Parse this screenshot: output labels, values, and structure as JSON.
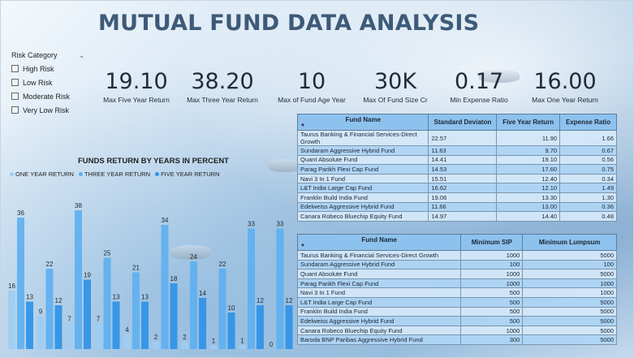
{
  "title": "MUTUAL FUND DATA ANALYSIS",
  "slicer": {
    "title": "Risk Category",
    "items": [
      "High Risk",
      "Low Risk",
      "Moderate Risk",
      "Very Low Risk"
    ]
  },
  "kpis": [
    {
      "value": "19.10",
      "label": "Max Five Year Return"
    },
    {
      "value": "38.20",
      "label": "Max Three Year Return"
    },
    {
      "value": "10",
      "label": "Max of Fund Age Year"
    },
    {
      "value": "30K",
      "label": "Max Of Fund Size Cr"
    },
    {
      "value": "0.17",
      "label": "Min Expense Ratio"
    },
    {
      "value": "16.00",
      "label": "Max One Year Return"
    }
  ],
  "colors": {
    "one_year": "#9ecdf2",
    "three_year": "#5eb0f0",
    "five_year": "#2f93e8",
    "title": "#3d5a78",
    "table_header": "#8ec2ee"
  },
  "chart_data": {
    "type": "bar",
    "title": "FUNDS RETURN BY YEARS IN PERCENT",
    "legend_position": "top-left",
    "series": [
      {
        "name": "ONE YEAR RETURN",
        "values": [
          16,
          9,
          7,
          7,
          4,
          2,
          2,
          1,
          1,
          0
        ]
      },
      {
        "name": "THREE YEAR RETURN",
        "values": [
          36,
          22,
          38,
          25,
          21,
          34,
          24,
          22,
          33,
          33
        ]
      },
      {
        "name": "FIVE YEAR RETURN",
        "values": [
          13,
          12,
          19,
          13,
          13,
          18,
          14,
          10,
          12,
          12
        ]
      }
    ],
    "ylim": [
      0,
      40
    ]
  },
  "table1": {
    "columns": [
      "Fund Name",
      "Standard Deviaton",
      "Five Year Return",
      "Expense Ratio"
    ],
    "rows": [
      [
        "Taurus Banking & Financial Services-Direct Growth",
        "22.57",
        "11.90",
        "1.66"
      ],
      [
        "Sundaram Aggressive Hybrid Fund",
        "11.63",
        "9.70",
        "0.67"
      ],
      [
        "Quant Absolute Fund",
        "14.41",
        "19.10",
        "0.56"
      ],
      [
        "Parag Parikh Flexi Cap Fund",
        "14.53",
        "17.60",
        "0.75"
      ],
      [
        "Navi 3 In 1 Fund",
        "15.51",
        "12.40",
        "0.34"
      ],
      [
        "L&T India Large Cap Fund",
        "16.62",
        "12.10",
        "1.49"
      ],
      [
        "Franklin Build India Fund",
        "19.06",
        "13.30",
        "1.30"
      ],
      [
        "Edelweiss Aggressive Hybrid Fund",
        "11.66",
        "13.00",
        "0.36"
      ],
      [
        "Canara Robeco Bluechip Equity Fund",
        "14.97",
        "14.40",
        "0.48"
      ]
    ]
  },
  "table2": {
    "columns": [
      "Fund Name",
      "Minimum SIP",
      "Minimum Lumpsum"
    ],
    "rows": [
      [
        "Taurus Banking & Financial Services-Direct Growth",
        "1000",
        "5000"
      ],
      [
        "Sundaram Aggressive Hybrid Fund",
        "100",
        "100"
      ],
      [
        "Quant Absolute Fund",
        "1000",
        "5000"
      ],
      [
        "Parag Parikh Flexi Cap Fund",
        "1000",
        "1000"
      ],
      [
        "Navi 3 In 1 Fund",
        "500",
        "1000"
      ],
      [
        "L&T India Large Cap Fund",
        "500",
        "5000"
      ],
      [
        "Franklin Build India Fund",
        "500",
        "5000"
      ],
      [
        "Edelweiss Aggressive Hybrid Fund",
        "500",
        "5000"
      ],
      [
        "Canara Robeco Bluechip Equity Fund",
        "1000",
        "5000"
      ],
      [
        "Baroda BNP Paribas Aggressive Hybrid Fund",
        "300",
        "5000"
      ]
    ]
  }
}
